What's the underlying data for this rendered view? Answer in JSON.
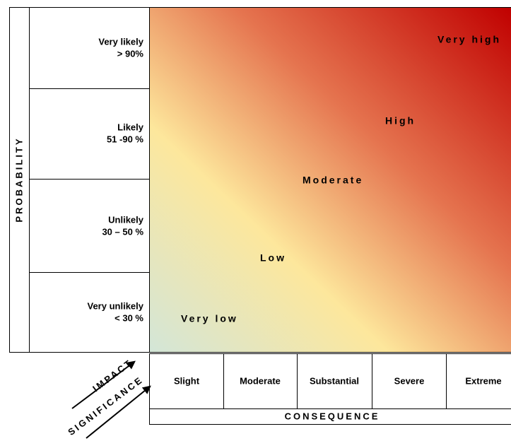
{
  "probability": {
    "title": "PROBABILITY",
    "rows": [
      {
        "line1": "Very likely",
        "line2": "> 90%"
      },
      {
        "line1": "Likely",
        "line2": "51 -90 %"
      },
      {
        "line1": "Unlikely",
        "line2": "30 – 50 %"
      },
      {
        "line1": "Very unlikely",
        "line2": "< 30 %"
      }
    ]
  },
  "consequence": {
    "title": "CONSEQUENCE",
    "levels": [
      "Slight",
      "Moderate",
      "Substantial",
      "Severe",
      "Extreme"
    ]
  },
  "impact_labels": [
    "IMPACT",
    "SIGNIFICANCE"
  ],
  "risk_levels": [
    "Very high",
    "High",
    "Moderate",
    "Low",
    "Very low"
  ]
}
